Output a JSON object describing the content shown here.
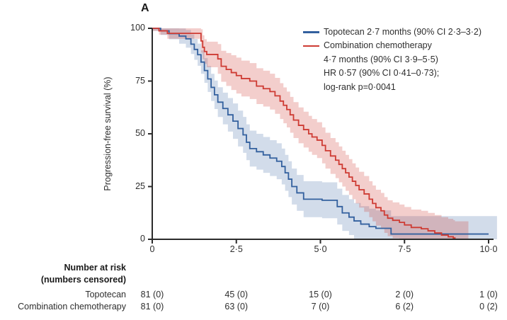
{
  "panel_label": "A",
  "legend": {
    "line1": "Topotecan 2·7 months (90% CI 2·3–3·2)",
    "line2": "Combination chemotherapy",
    "line3": "4·7 months (90% CI 3·9–5·5)",
    "line4": "HR 0·57 (90% CI 0·41–0·73);",
    "line5": "log-rank p=0·0041"
  },
  "chart_data": {
    "type": "line",
    "subtype": "kaplan-meier-step-with-ci-bands",
    "title": "",
    "xlabel": "",
    "ylabel": "Progression-free survival (%)",
    "xlim": [
      0,
      10
    ],
    "ylim": [
      0,
      100
    ],
    "x_ticks": [
      {
        "v": 0,
        "label": "0"
      },
      {
        "v": 2.5,
        "label": "2·5"
      },
      {
        "v": 5.0,
        "label": "5·0"
      },
      {
        "v": 7.5,
        "label": "7·5"
      },
      {
        "v": 10.0,
        "label": "10·0"
      }
    ],
    "y_ticks": [
      {
        "v": 0,
        "label": "0"
      },
      {
        "v": 25,
        "label": "25"
      },
      {
        "v": 50,
        "label": "50"
      },
      {
        "v": 75,
        "label": "75"
      },
      {
        "v": 100,
        "label": "100"
      }
    ],
    "grid": false,
    "legend_position": "top-right-inside",
    "ci_band": {
      "base": 1.2,
      "growth": 3.0,
      "max": 8.5,
      "note": "90% CI half-width estimated from shading"
    },
    "series": [
      {
        "name": "Topotecan",
        "median_label": "2·7 months (90% CI 2·3–3·2)",
        "color": "#33609E",
        "band_opacity": 0.22,
        "end_x": 10.0,
        "band_end_x": 10.25,
        "points": [
          [
            0,
            100
          ],
          [
            0.25,
            98.8
          ],
          [
            0.5,
            97.5
          ],
          [
            0.8,
            96.3
          ],
          [
            1.0,
            95
          ],
          [
            1.15,
            92.5
          ],
          [
            1.25,
            90
          ],
          [
            1.35,
            87.5
          ],
          [
            1.45,
            84
          ],
          [
            1.55,
            80
          ],
          [
            1.65,
            76
          ],
          [
            1.75,
            72
          ],
          [
            1.85,
            68.5
          ],
          [
            1.95,
            65
          ],
          [
            2.1,
            62
          ],
          [
            2.25,
            59
          ],
          [
            2.4,
            56
          ],
          [
            2.55,
            52.5
          ],
          [
            2.7,
            49.5
          ],
          [
            2.8,
            46
          ],
          [
            2.9,
            43
          ],
          [
            3.1,
            41.5
          ],
          [
            3.3,
            40
          ],
          [
            3.5,
            38.5
          ],
          [
            3.7,
            37
          ],
          [
            3.85,
            34.5
          ],
          [
            3.95,
            31.5
          ],
          [
            4.05,
            28.5
          ],
          [
            4.15,
            25
          ],
          [
            4.3,
            22
          ],
          [
            4.5,
            19
          ],
          [
            5.05,
            18.5
          ],
          [
            5.5,
            15.5
          ],
          [
            5.65,
            12.5
          ],
          [
            5.85,
            10.5
          ],
          [
            6.0,
            8.7
          ],
          [
            6.2,
            7.2
          ],
          [
            6.45,
            6
          ],
          [
            6.65,
            5.2
          ],
          [
            7.1,
            2.5
          ]
        ]
      },
      {
        "name": "Combination chemotherapy",
        "median_label": "4·7 months (90% CI 3·9–5·5)",
        "color": "#CE3B33",
        "band_opacity": 0.25,
        "end_x": 9.0,
        "band_end_x": 9.4,
        "points": [
          [
            0,
            100
          ],
          [
            0.2,
            98.8
          ],
          [
            0.45,
            97.6
          ],
          [
            1.45,
            94
          ],
          [
            1.5,
            91
          ],
          [
            1.55,
            89
          ],
          [
            1.62,
            87.6
          ],
          [
            1.95,
            85.5
          ],
          [
            2.05,
            82
          ],
          [
            2.2,
            80.5
          ],
          [
            2.35,
            79
          ],
          [
            2.5,
            77.6
          ],
          [
            2.65,
            76.2
          ],
          [
            2.9,
            75
          ],
          [
            3.1,
            72.6
          ],
          [
            3.3,
            71.4
          ],
          [
            3.5,
            70
          ],
          [
            3.65,
            68
          ],
          [
            3.8,
            65.5
          ],
          [
            3.9,
            63.5
          ],
          [
            4.0,
            61.5
          ],
          [
            4.1,
            59
          ],
          [
            4.2,
            56.5
          ],
          [
            4.35,
            54
          ],
          [
            4.5,
            52
          ],
          [
            4.65,
            50
          ],
          [
            4.75,
            48.5
          ],
          [
            4.9,
            47
          ],
          [
            5.05,
            44.5
          ],
          [
            5.15,
            42
          ],
          [
            5.3,
            39.5
          ],
          [
            5.45,
            37.5
          ],
          [
            5.55,
            35.5
          ],
          [
            5.65,
            33.5
          ],
          [
            5.75,
            31.5
          ],
          [
            5.85,
            29.5
          ],
          [
            5.95,
            27.5
          ],
          [
            6.05,
            25.5
          ],
          [
            6.15,
            23.5
          ],
          [
            6.3,
            21.5
          ],
          [
            6.45,
            19
          ],
          [
            6.55,
            17
          ],
          [
            6.65,
            15
          ],
          [
            6.8,
            13.5
          ],
          [
            6.9,
            11.5
          ],
          [
            7.0,
            10
          ],
          [
            7.15,
            9
          ],
          [
            7.35,
            8
          ],
          [
            7.5,
            6.8
          ],
          [
            7.7,
            5.6
          ],
          [
            8.0,
            5
          ],
          [
            8.2,
            4
          ],
          [
            8.4,
            3
          ],
          [
            8.6,
            2
          ],
          [
            8.8,
            1.2
          ],
          [
            8.95,
            0.6
          ],
          [
            9.0,
            0
          ]
        ]
      }
    ],
    "stats": {
      "hr": "0·57",
      "hr_ci": "90% CI 0·41–0·73",
      "log_rank_p": "0·0041"
    }
  },
  "risk_table": {
    "header_line1": "Number at risk",
    "header_line2": "(numbers censored)",
    "time_points": [
      0,
      2.5,
      5.0,
      7.5,
      10.0
    ],
    "rows": [
      {
        "label": "Topotecan",
        "values": [
          "81 (0)",
          "45 (0)",
          "15 (0)",
          "2 (0)",
          "1 (0)"
        ]
      },
      {
        "label": "Combination chemotherapy",
        "values": [
          "81 (0)",
          "63 (0)",
          "7 (0)",
          "6 (2)",
          "0 (2)"
        ]
      }
    ]
  },
  "colors": {
    "axis": "#2b2b2b",
    "text": "#2e2e2e",
    "topotecan_line": "#33609E",
    "combination_line": "#CE3B33"
  }
}
